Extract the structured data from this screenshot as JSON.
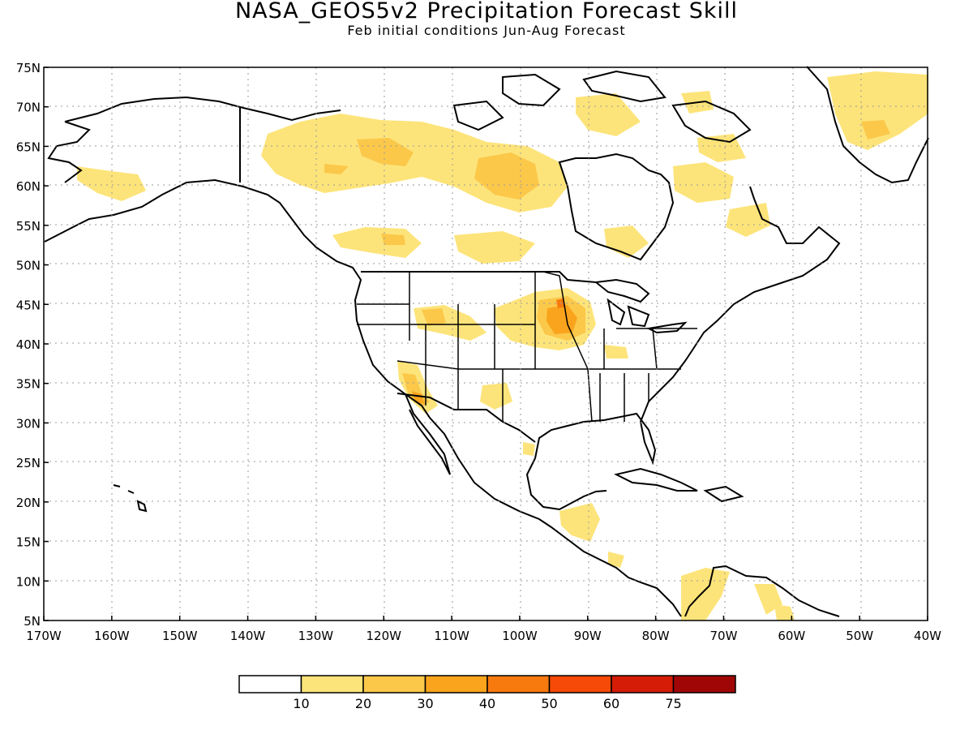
{
  "title": "NASA_GEOS5v2 Precipitation Forecast Skill",
  "subtitle": "Feb initial conditions  Jun-Aug Forecast",
  "map": {
    "lat_labels": [
      "75N",
      "70N",
      "65N",
      "60N",
      "55N",
      "50N",
      "45N",
      "40N",
      "35N",
      "30N",
      "25N",
      "20N",
      "15N",
      "10N",
      "5N"
    ],
    "lon_labels": [
      "170W",
      "160W",
      "150W",
      "140W",
      "130W",
      "120W",
      "110W",
      "100W",
      "90W",
      "80W",
      "70W",
      "60W",
      "50W",
      "40W"
    ],
    "lat_range": [
      5,
      75
    ],
    "lon_range": [
      -170,
      -40
    ],
    "grid": "dotted",
    "land_outline_color": "#000000"
  },
  "colorbar": {
    "labels": [
      "10",
      "20",
      "30",
      "40",
      "50",
      "60",
      "75"
    ],
    "colors": [
      "#ffffff",
      "#fde47a",
      "#fbc84a",
      "#f9a41c",
      "#f77a0e",
      "#f54a08",
      "#d41c06",
      "#a00606"
    ]
  },
  "skill_colors": {
    "low": "#fde47a",
    "mid": "#fbc84a",
    "high": "#f9a41c",
    "peak": "#f77a0e"
  }
}
